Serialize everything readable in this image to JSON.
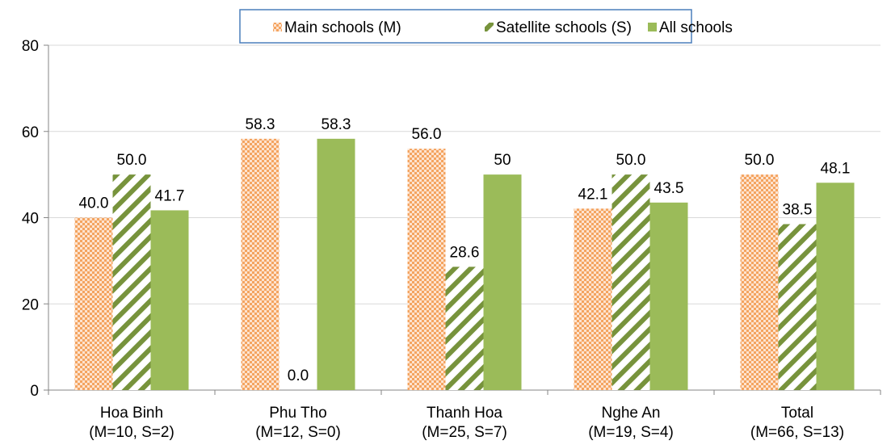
{
  "chart_data": {
    "type": "bar",
    "categories": [
      [
        "Hoa Binh",
        "(M=10, S=2)"
      ],
      [
        "Phu Tho",
        "(M=12, S=0)"
      ],
      [
        "Thanh Hoa",
        "(M=25, S=7)"
      ],
      [
        "Nghe An",
        "(M=19, S=4)"
      ],
      [
        "Total",
        "(M=66, S=13)"
      ]
    ],
    "series": [
      {
        "name": "Main schools (M)",
        "values": [
          40.0,
          58.3,
          56.0,
          42.1,
          50.0
        ],
        "labels": [
          "40.0",
          "58.3",
          "56.0",
          "42.1",
          "50.0"
        ],
        "color": "#f4a460",
        "pattern": "dotted"
      },
      {
        "name": "Satellite schools (S)",
        "values": [
          50.0,
          0.0,
          28.6,
          50.0,
          38.5
        ],
        "labels": [
          "50.0",
          "0.0",
          "28.6",
          "50.0",
          "38.5"
        ],
        "color": "#77933c",
        "pattern": "diagonal-stripes"
      },
      {
        "name": "All schools",
        "values": [
          41.7,
          58.3,
          50,
          43.5,
          48.1
        ],
        "labels": [
          "41.7",
          "58.3",
          "50",
          "43.5",
          "48.1"
        ],
        "color": "#9bbb59",
        "pattern": "solid"
      }
    ],
    "y_ticks": [
      "0",
      "20",
      "40",
      "60",
      "80"
    ],
    "ylim": [
      0,
      80
    ],
    "grid": true,
    "legend_position": "top"
  }
}
